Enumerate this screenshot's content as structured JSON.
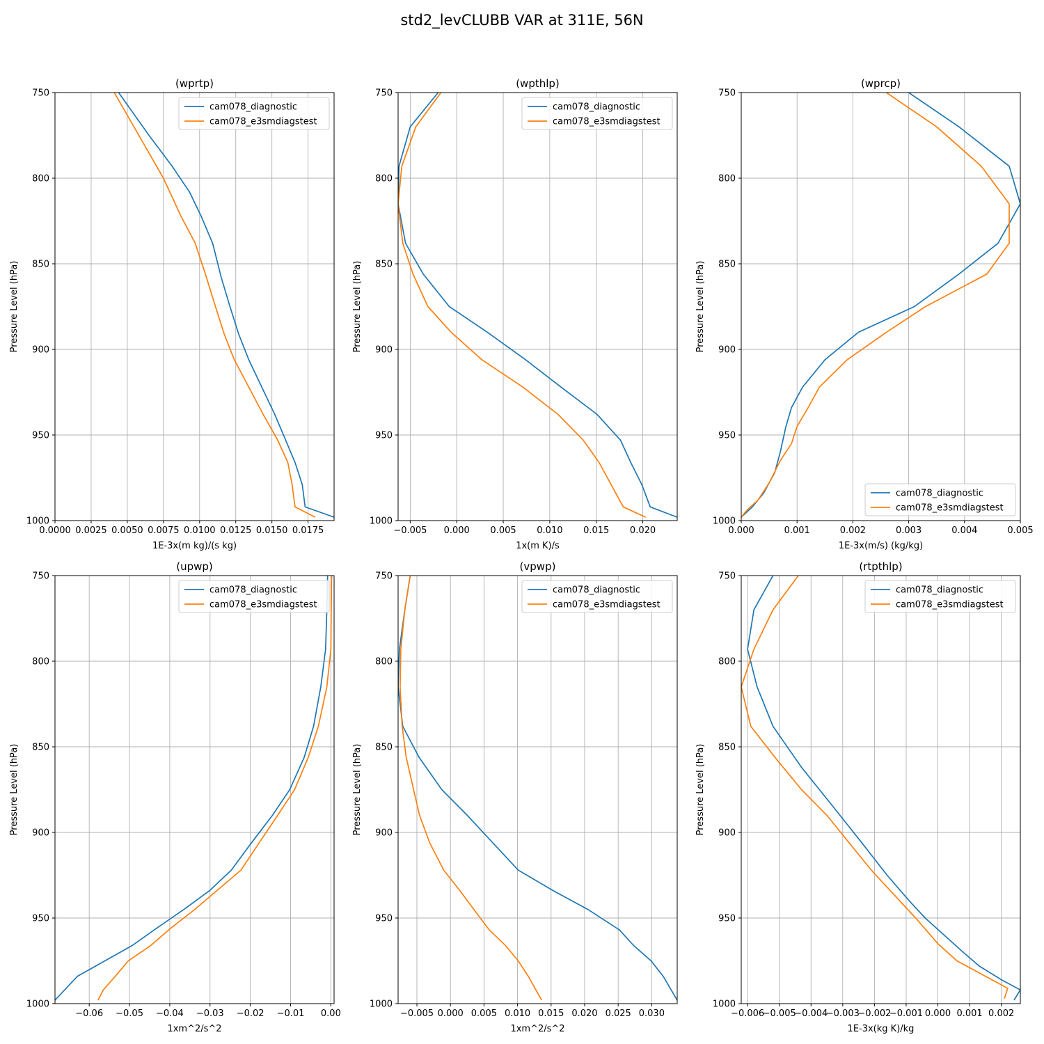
{
  "figure_title": "std2_levCLUBB VAR at 311E, 56N",
  "colors": {
    "series0": "#1f77b4",
    "series1": "#ff7f0e",
    "grid": "#b0b0b0"
  },
  "chart_data": [
    {
      "type": "line",
      "title": "(wprtp)",
      "xlabel": "1E-3x(m kg)/(s kg)",
      "ylabel": "Pressure Level (hPa)",
      "xlim": [
        0,
        0.0193
      ],
      "ylim": [
        1000,
        750
      ],
      "xticks": [
        0.0,
        0.0025,
        0.005,
        0.0075,
        0.01,
        0.0125,
        0.015,
        0.0175
      ],
      "xtick_labels": [
        "0.0000",
        "0.0025",
        "0.0050",
        "0.0075",
        "0.0100",
        "0.0125",
        "0.0150",
        "0.0175"
      ],
      "yticks": [
        750,
        800,
        850,
        900,
        950,
        1000
      ],
      "grid": true,
      "legend": "upper right",
      "series": [
        {
          "name": "cam078_diagnostic",
          "points": [
            [
              0.0044,
              750
            ],
            [
              0.0065,
              775
            ],
            [
              0.0081,
              793
            ],
            [
              0.0093,
              808
            ],
            [
              0.0101,
              822
            ],
            [
              0.0109,
              838
            ],
            [
              0.0115,
              858
            ],
            [
              0.0121,
              875
            ],
            [
              0.0127,
              891
            ],
            [
              0.0134,
              906
            ],
            [
              0.0143,
              922
            ],
            [
              0.0152,
              938
            ],
            [
              0.0159,
              952
            ],
            [
              0.0166,
              966
            ],
            [
              0.0171,
              979
            ],
            [
              0.0173,
              992
            ],
            [
              0.0193,
              998
            ]
          ]
        },
        {
          "name": "cam078_e3smdiagstest",
          "points": [
            [
              0.0041,
              750
            ],
            [
              0.0058,
              775
            ],
            [
              0.0075,
              800
            ],
            [
              0.0087,
              822
            ],
            [
              0.0097,
              838
            ],
            [
              0.0104,
              856
            ],
            [
              0.0111,
              875
            ],
            [
              0.0117,
              891
            ],
            [
              0.0124,
              906
            ],
            [
              0.0134,
              922
            ],
            [
              0.0144,
              938
            ],
            [
              0.0154,
              953
            ],
            [
              0.0161,
              966
            ],
            [
              0.0164,
              979
            ],
            [
              0.0166,
              992
            ],
            [
              0.018,
              998
            ]
          ]
        }
      ]
    },
    {
      "type": "line",
      "title": "(wpthlp)",
      "xlabel": "1x(m K)/s",
      "ylabel": "Pressure Level (hPa)",
      "xlim": [
        -0.0063,
        0.0237
      ],
      "ylim": [
        1000,
        750
      ],
      "xticks": [
        -0.005,
        0.0,
        0.005,
        0.01,
        0.015,
        0.02
      ],
      "xtick_labels": [
        "−0.005",
        "0.000",
        "0.005",
        "0.010",
        "0.015",
        "0.020"
      ],
      "yticks": [
        750,
        800,
        850,
        900,
        950,
        1000
      ],
      "grid": true,
      "legend": "upper right",
      "series": [
        {
          "name": "cam078_diagnostic",
          "points": [
            [
              -0.002,
              750
            ],
            [
              -0.005,
              770
            ],
            [
              -0.0062,
              793
            ],
            [
              -0.0063,
              815
            ],
            [
              -0.0055,
              838
            ],
            [
              -0.0036,
              856
            ],
            [
              -0.0008,
              875
            ],
            [
              0.0033,
              890
            ],
            [
              0.0074,
              906
            ],
            [
              0.0112,
              922
            ],
            [
              0.0151,
              938
            ],
            [
              0.0176,
              953
            ],
            [
              0.0187,
              966
            ],
            [
              0.0199,
              979
            ],
            [
              0.0208,
              992
            ],
            [
              0.0237,
              998
            ]
          ]
        },
        {
          "name": "cam078_e3smdiagstest",
          "points": [
            [
              -0.0017,
              750
            ],
            [
              -0.0044,
              770
            ],
            [
              -0.0059,
              793
            ],
            [
              -0.0063,
              815
            ],
            [
              -0.0058,
              838
            ],
            [
              -0.0047,
              856
            ],
            [
              -0.0031,
              875
            ],
            [
              -0.0006,
              890
            ],
            [
              0.0027,
              906
            ],
            [
              0.0071,
              922
            ],
            [
              0.0109,
              938
            ],
            [
              0.0136,
              953
            ],
            [
              0.0153,
              966
            ],
            [
              0.0166,
              979
            ],
            [
              0.0179,
              992
            ],
            [
              0.0203,
              998
            ]
          ]
        }
      ]
    },
    {
      "type": "line",
      "title": "(wprcp)",
      "xlabel": "1E-3x(m/s) (kg/kg)",
      "ylabel": "Pressure Level (hPa)",
      "xlim": [
        0,
        0.005
      ],
      "ylim": [
        1000,
        750
      ],
      "xticks": [
        0.0,
        0.001,
        0.002,
        0.003,
        0.004,
        0.005
      ],
      "xtick_labels": [
        "0.000",
        "0.001",
        "0.002",
        "0.003",
        "0.004",
        "0.005"
      ],
      "yticks": [
        750,
        800,
        850,
        900,
        950,
        1000
      ],
      "grid": true,
      "legend": "lower right",
      "series": [
        {
          "name": "cam078_diagnostic",
          "points": [
            [
              0.003,
              750
            ],
            [
              0.0039,
              770
            ],
            [
              0.0048,
              793
            ],
            [
              0.005,
              815
            ],
            [
              0.0046,
              838
            ],
            [
              0.0039,
              856
            ],
            [
              0.0031,
              875
            ],
            [
              0.0021,
              890
            ],
            [
              0.0015,
              906
            ],
            [
              0.0011,
              922
            ],
            [
              0.0009,
              934
            ],
            [
              0.0008,
              945
            ],
            [
              0.0007,
              960
            ],
            [
              0.0006,
              972
            ],
            [
              0.0004,
              984
            ],
            [
              0.0002,
              992
            ],
            [
              0.0,
              998
            ]
          ]
        },
        {
          "name": "cam078_e3smdiagstest",
          "points": [
            [
              0.0026,
              750
            ],
            [
              0.0035,
              770
            ],
            [
              0.0043,
              793
            ],
            [
              0.0048,
              815
            ],
            [
              0.0048,
              838
            ],
            [
              0.0044,
              856
            ],
            [
              0.0033,
              875
            ],
            [
              0.0026,
              890
            ],
            [
              0.0019,
              906
            ],
            [
              0.0014,
              922
            ],
            [
              0.0012,
              934
            ],
            [
              0.001,
              945
            ],
            [
              0.0009,
              955
            ],
            [
              0.0007,
              965
            ],
            [
              0.0005,
              978
            ],
            [
              0.0003,
              988
            ],
            [
              0.0001,
              994
            ],
            [
              0.0,
              998
            ]
          ]
        }
      ]
    },
    {
      "type": "line",
      "title": "(upwp)",
      "xlabel": "1xm^2/s^2",
      "ylabel": "Pressure Level (hPa)",
      "xlim": [
        -0.0685,
        0.0008
      ],
      "ylim": [
        1000,
        750
      ],
      "xticks": [
        -0.06,
        -0.05,
        -0.04,
        -0.03,
        -0.02,
        -0.01,
        0.0
      ],
      "xtick_labels": [
        "−0.06",
        "−0.05",
        "−0.04",
        "−0.03",
        "−0.02",
        "−0.01",
        "0.00"
      ],
      "yticks": [
        750,
        800,
        850,
        900,
        950,
        1000
      ],
      "grid": true,
      "legend": "upper right",
      "series": [
        {
          "name": "cam078_diagnostic",
          "points": [
            [
              -0.0008,
              750
            ],
            [
              -0.001,
              770
            ],
            [
              -0.0013,
              793
            ],
            [
              -0.0025,
              815
            ],
            [
              -0.0043,
              838
            ],
            [
              -0.0066,
              856
            ],
            [
              -0.0102,
              875
            ],
            [
              -0.0145,
              890
            ],
            [
              -0.0197,
              906
            ],
            [
              -0.0247,
              922
            ],
            [
              -0.0301,
              934
            ],
            [
              -0.0365,
              945
            ],
            [
              -0.0433,
              956
            ],
            [
              -0.0493,
              966
            ],
            [
              -0.0561,
              975
            ],
            [
              -0.0629,
              984
            ],
            [
              -0.0685,
              998
            ]
          ]
        },
        {
          "name": "cam078_e3smdiagstest",
          "points": [
            [
              0.0002,
              750
            ],
            [
              0.0001,
              770
            ],
            [
              0.0,
              793
            ],
            [
              -0.001,
              815
            ],
            [
              -0.0031,
              838
            ],
            [
              -0.0056,
              856
            ],
            [
              -0.009,
              875
            ],
            [
              -0.0132,
              890
            ],
            [
              -0.0178,
              906
            ],
            [
              -0.0223,
              922
            ],
            [
              -0.0283,
              934
            ],
            [
              -0.0338,
              945
            ],
            [
              -0.0398,
              956
            ],
            [
              -0.0447,
              966
            ],
            [
              -0.0503,
              975
            ],
            [
              -0.0535,
              984
            ],
            [
              -0.0565,
              992
            ],
            [
              -0.0578,
              998
            ]
          ]
        }
      ]
    },
    {
      "type": "line",
      "title": "(vpwp)",
      "xlabel": "1xm^2/s^2",
      "ylabel": "Pressure Level (hPa)",
      "xlim": [
        -0.0078,
        0.0338
      ],
      "ylim": [
        1000,
        750
      ],
      "xticks": [
        -0.005,
        0.0,
        0.005,
        0.01,
        0.015,
        0.02,
        0.025,
        0.03
      ],
      "xtick_labels": [
        "−0.005",
        "0.000",
        "0.005",
        "0.010",
        "0.015",
        "0.020",
        "0.025",
        "0.030"
      ],
      "yticks": [
        750,
        800,
        850,
        900,
        950,
        1000
      ],
      "grid": true,
      "legend": "upper right",
      "series": [
        {
          "name": "cam078_diagnostic",
          "points": [
            [
              -0.006,
              750
            ],
            [
              -0.0068,
              770
            ],
            [
              -0.0076,
              793
            ],
            [
              -0.0078,
              815
            ],
            [
              -0.0071,
              838
            ],
            [
              -0.0047,
              856
            ],
            [
              -0.0013,
              875
            ],
            [
              0.0025,
              890
            ],
            [
              0.0063,
              906
            ],
            [
              0.0101,
              922
            ],
            [
              0.0153,
              934
            ],
            [
              0.0205,
              945
            ],
            [
              0.0252,
              957
            ],
            [
              0.0273,
              966
            ],
            [
              0.0299,
              975
            ],
            [
              0.0317,
              984
            ],
            [
              0.0338,
              998
            ]
          ]
        },
        {
          "name": "cam078_e3smdiagstest",
          "points": [
            [
              -0.006,
              750
            ],
            [
              -0.0068,
              770
            ],
            [
              -0.0074,
              793
            ],
            [
              -0.0075,
              815
            ],
            [
              -0.0072,
              838
            ],
            [
              -0.0066,
              856
            ],
            [
              -0.0055,
              875
            ],
            [
              -0.0046,
              890
            ],
            [
              -0.0031,
              906
            ],
            [
              -0.001,
              922
            ],
            [
              0.0014,
              934
            ],
            [
              0.0035,
              945
            ],
            [
              0.0058,
              957
            ],
            [
              0.0082,
              966
            ],
            [
              0.0101,
              975
            ],
            [
              0.0116,
              984
            ],
            [
              0.0136,
              998
            ]
          ]
        }
      ]
    },
    {
      "type": "line",
      "title": "(rtpthlp)",
      "xlabel": "1E-3x(kg K)/kg",
      "ylabel": "Pressure Level (hPa)",
      "xlim": [
        -0.0062,
        0.0026
      ],
      "ylim": [
        1000,
        750
      ],
      "xticks": [
        -0.006,
        -0.005,
        -0.004,
        -0.003,
        -0.002,
        -0.001,
        0.0,
        0.001,
        0.002
      ],
      "xtick_labels": [
        "−0.006",
        "−0.005",
        "−0.004",
        "−0.003",
        "−0.002",
        "−0.001",
        "0.000",
        "0.001",
        "0.002"
      ],
      "yticks": [
        750,
        800,
        850,
        900,
        950,
        1000
      ],
      "grid": true,
      "legend": "upper right",
      "series": [
        {
          "name": "cam078_diagnostic",
          "points": [
            [
              -0.0052,
              750
            ],
            [
              -0.0058,
              770
            ],
            [
              -0.006,
              793
            ],
            [
              -0.0057,
              815
            ],
            [
              -0.0052,
              838
            ],
            [
              -0.0043,
              862
            ],
            [
              -0.0033,
              885
            ],
            [
              -0.0024,
              906
            ],
            [
              -0.0016,
              925
            ],
            [
              -0.0009,
              940
            ],
            [
              -0.0004,
              950
            ],
            [
              0.0002,
              960
            ],
            [
              0.0008,
              970
            ],
            [
              0.0013,
              978
            ],
            [
              0.002,
              986
            ],
            [
              0.0026,
              992
            ],
            [
              0.0024,
              998
            ]
          ]
        },
        {
          "name": "cam078_e3smdiagstest",
          "points": [
            [
              -0.0044,
              750
            ],
            [
              -0.0052,
              770
            ],
            [
              -0.0058,
              793
            ],
            [
              -0.0062,
              815
            ],
            [
              -0.0059,
              838
            ],
            [
              -0.0051,
              857
            ],
            [
              -0.0043,
              875
            ],
            [
              -0.0035,
              890
            ],
            [
              -0.0028,
              906
            ],
            [
              -0.0021,
              922
            ],
            [
              -0.0013,
              938
            ],
            [
              -0.0007,
              950
            ],
            [
              0.0,
              965
            ],
            [
              0.0006,
              975
            ],
            [
              0.0014,
              983
            ],
            [
              0.0022,
              991
            ],
            [
              0.0021,
              997
            ]
          ]
        }
      ]
    }
  ]
}
